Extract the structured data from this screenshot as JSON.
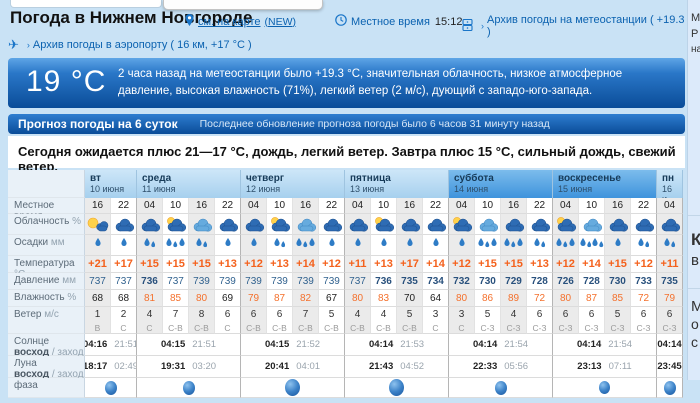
{
  "header": {
    "title": "Погода в Нижнем Новгороде",
    "map_link": "см. на карте",
    "map_new": "(NEW)",
    "local_time_label": "Местное время",
    "local_time": "15:12",
    "station_link": "Архив погоды на метеостанции ( +19.3 °C )",
    "airport_link": "Архив погоды в аэропорту ( 16 км, +17 °C )"
  },
  "current": {
    "temp": "19 °C",
    "description": "2 часа назад на метеостанции было +19.3 °C, значительная облачность, низкое атмосферное давление, высокая влажность (71%), легкий ветер (2 м/с), дующий с западо-юго-запада."
  },
  "forecast_bar": {
    "title": "Прогноз погоды на 6 суток",
    "updated": "Последнее обновление прогноза погоды было 6 часов 31 минуту назад"
  },
  "summary": "Сегодня ожидается плюс 21—17 °C, дождь, легкий ветер. Завтра плюс 15 °C, сильный дождь, свежий ветер.",
  "colors": {
    "accent_blue": "#0a4c98",
    "temp_orange": "#f4611c",
    "pressure_navy": "#31628f",
    "link_blue": "#0b62b0"
  },
  "table": {
    "row_labels": {
      "local_time": {
        "text": "Местное время",
        "unit": ""
      },
      "clouds": {
        "text": "Облачность",
        "unit": "%"
      },
      "precip": {
        "text": "Осадки",
        "unit": "мм"
      },
      "temp": {
        "text": "Температура",
        "unit": "°C"
      },
      "pressure": {
        "text": "Давление",
        "unit": "мм"
      },
      "humidity": {
        "text": "Влажность",
        "unit": "%"
      },
      "wind": {
        "text": "Ветер",
        "unit": "м/с"
      },
      "sun": {
        "text": "Солнце",
        "rise": "восход",
        "sep": " / ",
        "set": "заход"
      },
      "moon": {
        "text": "Луна",
        "rise": "восход",
        "sep": " / ",
        "set": "заход"
      },
      "phase": {
        "text": "фаза"
      }
    },
    "days": [
      {
        "name": "вт",
        "date": "10 июня",
        "cols": 2,
        "weekend": false
      },
      {
        "name": "среда",
        "date": "11 июня",
        "cols": 4,
        "weekend": false
      },
      {
        "name": "четверг",
        "date": "12 июня",
        "cols": 4,
        "weekend": false
      },
      {
        "name": "пятница",
        "date": "13 июня",
        "cols": 4,
        "weekend": false
      },
      {
        "name": "суббота",
        "date": "14 июня",
        "cols": 4,
        "weekend": true
      },
      {
        "name": "воскресенье",
        "date": "15 июня",
        "cols": 4,
        "weekend": true
      },
      {
        "name": "пн",
        "date": "16 и.",
        "cols": 1,
        "weekend": false
      }
    ],
    "times": [
      "16",
      "22",
      "04",
      "10",
      "16",
      "22",
      "04",
      "10",
      "16",
      "22",
      "04",
      "10",
      "16",
      "22",
      "04",
      "10",
      "16",
      "22",
      "04",
      "10",
      "16",
      "22",
      "04"
    ],
    "clouds": [
      "sun-cloud",
      "cloud",
      "cloud",
      "cloud-sun",
      "cloud-light",
      "cloud",
      "cloud",
      "cloud-sun",
      "cloud-light",
      "cloud",
      "cloud",
      "cloud-sun",
      "cloud",
      "cloud",
      "cloud-sun",
      "cloud-light",
      "cloud",
      "cloud",
      "cloud-sun",
      "cloud-light",
      "cloud",
      "cloud",
      "cloud"
    ],
    "rain_drops": [
      1,
      1,
      2,
      3,
      2,
      1,
      1,
      2,
      3,
      1,
      1,
      1,
      1,
      1,
      1,
      3,
      3,
      2,
      3,
      4,
      1,
      2,
      2
    ],
    "temperature": [
      "+21",
      "+17",
      "+15",
      "+15",
      "+15",
      "+13",
      "+12",
      "+13",
      "+14",
      "+12",
      "+11",
      "+13",
      "+17",
      "+14",
      "+12",
      "+15",
      "+15",
      "+13",
      "+12",
      "+14",
      "+15",
      "+12",
      "+11"
    ],
    "pressure": [
      "737",
      "737",
      "736",
      "737",
      "739",
      "739",
      "739",
      "739",
      "739",
      "739",
      "737",
      "736",
      "735",
      "734",
      "732",
      "730",
      "729",
      "728",
      "726",
      "728",
      "730",
      "733",
      "735"
    ],
    "pressure_bold": [
      false,
      false,
      true,
      false,
      false,
      false,
      false,
      false,
      false,
      false,
      false,
      true,
      true,
      true,
      true,
      true,
      true,
      true,
      true,
      true,
      true,
      true,
      true
    ],
    "humidity": [
      "68",
      "68",
      "81",
      "85",
      "80",
      "69",
      "79",
      "87",
      "82",
      "67",
      "80",
      "83",
      "70",
      "64",
      "80",
      "86",
      "89",
      "72",
      "80",
      "87",
      "85",
      "72",
      "79"
    ],
    "humidity_hot": [
      false,
      false,
      true,
      true,
      true,
      false,
      true,
      true,
      true,
      false,
      true,
      true,
      false,
      false,
      true,
      true,
      true,
      true,
      true,
      true,
      true,
      true,
      true
    ],
    "wind_speed": [
      "1",
      "2",
      "4",
      "7",
      "8",
      "6",
      "6",
      "6",
      "7",
      "5",
      "4",
      "4",
      "5",
      "3",
      "3",
      "5",
      "4",
      "6",
      "6",
      "6",
      "5",
      "6",
      "6"
    ],
    "wind_dir": [
      "В",
      "С",
      "С",
      "С-В",
      "С-В",
      "С",
      "С-В",
      "С-В",
      "С-В",
      "С-В",
      "С-В",
      "С-В",
      "С-В",
      "С",
      "С",
      "С-З",
      "С-З",
      "С-З",
      "С-З",
      "С-З",
      "С-З",
      "С-З",
      "С-З"
    ],
    "sun": [
      {
        "rise": "04:16",
        "set": "21:51"
      },
      {
        "rise": "04:15",
        "set": "21:51"
      },
      {
        "rise": "04:15",
        "set": "21:52"
      },
      {
        "rise": "04:14",
        "set": "21:53"
      },
      {
        "rise": "04:14",
        "set": "21:54"
      },
      {
        "rise": "04:14",
        "set": "21:54"
      },
      {
        "rise": "04:14",
        "set": ""
      }
    ],
    "moon": [
      {
        "rise": "18:17",
        "set": "02:49"
      },
      {
        "rise": "19:31",
        "set": "03:20"
      },
      {
        "rise": "20:41",
        "set": "04:01"
      },
      {
        "rise": "21:43",
        "set": "04:52"
      },
      {
        "rise": "22:33",
        "set": "05:56"
      },
      {
        "rise": "23:13",
        "set": "07:11"
      },
      {
        "rise": "23:45",
        "set": ""
      }
    ],
    "phase_sizes": [
      14,
      14,
      17,
      17,
      14,
      13,
      14
    ]
  },
  "sidebar": {
    "fragments": [
      "М",
      "Р",
      "на",
      "К",
      "в",
      "М",
      "о",
      "с"
    ]
  }
}
